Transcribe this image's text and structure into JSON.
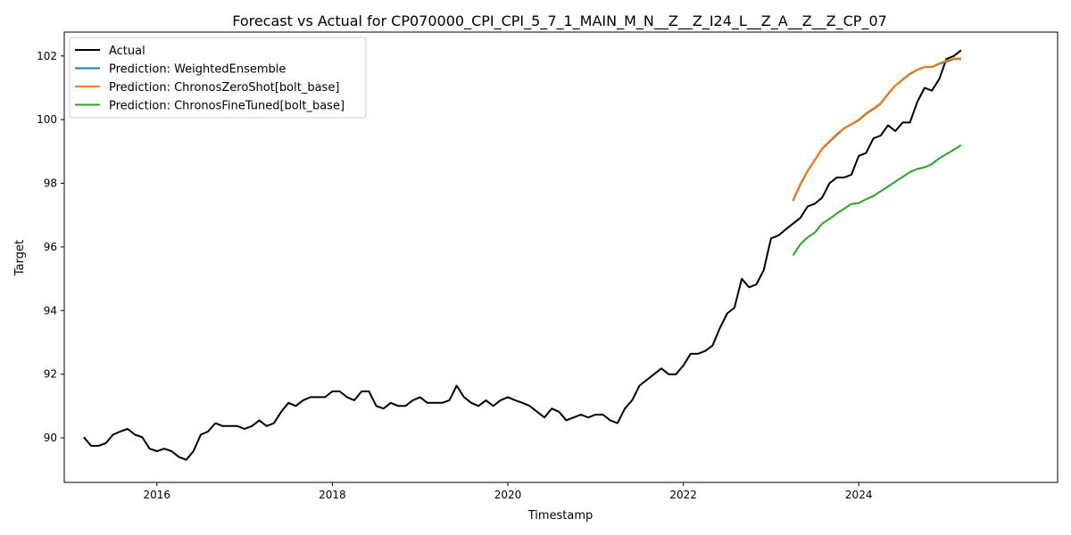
{
  "chart_data": {
    "type": "line",
    "title": "Forecast vs Actual for CP070000_CPI_CPI_5_7_1_MAIN_M_N__Z__Z_I24_L__Z_A__Z__Z_CP_07",
    "xlabel": "Timestamp",
    "ylabel": "Target",
    "xlim": [
      "2014-12-11",
      "2026-04-07"
    ],
    "ylim": [
      88.6,
      102.75
    ],
    "x_ticks": [
      "2016",
      "2018",
      "2020",
      "2022",
      "2024"
    ],
    "y_ticks": [
      90,
      92,
      94,
      96,
      98,
      100,
      102
    ],
    "grid": false,
    "legend_position": "upper left",
    "series": [
      {
        "name": "Actual",
        "color": "#000000",
        "points": [
          [
            "2015-03",
            90.02
          ],
          [
            "2015-04",
            89.75
          ],
          [
            "2015-05",
            89.75
          ],
          [
            "2015-06",
            89.83
          ],
          [
            "2015-07",
            90.1
          ],
          [
            "2015-08",
            90.2
          ],
          [
            "2015-09",
            90.28
          ],
          [
            "2015-10",
            90.1
          ],
          [
            "2015-11",
            90.02
          ],
          [
            "2015-12",
            89.66
          ],
          [
            "2016-01",
            89.58
          ],
          [
            "2016-02",
            89.66
          ],
          [
            "2016-03",
            89.58
          ],
          [
            "2016-04",
            89.4
          ],
          [
            "2016-05",
            89.31
          ],
          [
            "2016-06",
            89.58
          ],
          [
            "2016-07",
            90.1
          ],
          [
            "2016-08",
            90.2
          ],
          [
            "2016-09",
            90.46
          ],
          [
            "2016-10",
            90.37
          ],
          [
            "2016-11",
            90.37
          ],
          [
            "2016-12",
            90.37
          ],
          [
            "2017-01",
            90.28
          ],
          [
            "2017-02",
            90.37
          ],
          [
            "2017-03",
            90.55
          ],
          [
            "2017-04",
            90.37
          ],
          [
            "2017-05",
            90.46
          ],
          [
            "2017-06",
            90.82
          ],
          [
            "2017-07",
            91.1
          ],
          [
            "2017-08",
            91.0
          ],
          [
            "2017-09",
            91.18
          ],
          [
            "2017-10",
            91.28
          ],
          [
            "2017-11",
            91.28
          ],
          [
            "2017-12",
            91.28
          ],
          [
            "2018-01",
            91.46
          ],
          [
            "2018-02",
            91.46
          ],
          [
            "2018-03",
            91.28
          ],
          [
            "2018-04",
            91.18
          ],
          [
            "2018-05",
            91.46
          ],
          [
            "2018-06",
            91.46
          ],
          [
            "2018-07",
            91.0
          ],
          [
            "2018-08",
            90.92
          ],
          [
            "2018-09",
            91.1
          ],
          [
            "2018-10",
            91.0
          ],
          [
            "2018-11",
            91.0
          ],
          [
            "2018-12",
            91.18
          ],
          [
            "2019-01",
            91.28
          ],
          [
            "2019-02",
            91.1
          ],
          [
            "2019-03",
            91.1
          ],
          [
            "2019-04",
            91.1
          ],
          [
            "2019-05",
            91.18
          ],
          [
            "2019-06",
            91.64
          ],
          [
            "2019-07",
            91.28
          ],
          [
            "2019-08",
            91.1
          ],
          [
            "2019-09",
            91.0
          ],
          [
            "2019-10",
            91.18
          ],
          [
            "2019-11",
            91.0
          ],
          [
            "2019-12",
            91.18
          ],
          [
            "2020-01",
            91.28
          ],
          [
            "2020-02",
            91.18
          ],
          [
            "2020-03",
            91.1
          ],
          [
            "2020-04",
            91.0
          ],
          [
            "2020-05",
            90.82
          ],
          [
            "2020-06",
            90.64
          ],
          [
            "2020-07",
            90.92
          ],
          [
            "2020-08",
            90.82
          ],
          [
            "2020-09",
            90.55
          ],
          [
            "2020-10",
            90.64
          ],
          [
            "2020-11",
            90.73
          ],
          [
            "2020-12",
            90.64
          ],
          [
            "2021-01",
            90.73
          ],
          [
            "2021-02",
            90.73
          ],
          [
            "2021-03",
            90.55
          ],
          [
            "2021-04",
            90.46
          ],
          [
            "2021-05",
            90.92
          ],
          [
            "2021-06",
            91.18
          ],
          [
            "2021-07",
            91.64
          ],
          [
            "2021-08",
            91.82
          ],
          [
            "2021-09",
            92.0
          ],
          [
            "2021-10",
            92.18
          ],
          [
            "2021-11",
            92.0
          ],
          [
            "2021-12",
            92.0
          ],
          [
            "2022-01",
            92.27
          ],
          [
            "2022-02",
            92.64
          ],
          [
            "2022-03",
            92.64
          ],
          [
            "2022-04",
            92.73
          ],
          [
            "2022-05",
            92.9
          ],
          [
            "2022-06",
            93.45
          ],
          [
            "2022-07",
            93.91
          ],
          [
            "2022-08",
            94.09
          ],
          [
            "2022-09",
            95.0
          ],
          [
            "2022-10",
            94.73
          ],
          [
            "2022-11",
            94.82
          ],
          [
            "2022-12",
            95.27
          ],
          [
            "2023-01",
            96.27
          ],
          [
            "2023-02",
            96.36
          ],
          [
            "2023-03",
            96.55
          ],
          [
            "2023-04",
            96.73
          ],
          [
            "2023-05",
            96.91
          ],
          [
            "2023-06",
            97.27
          ],
          [
            "2023-07",
            97.36
          ],
          [
            "2023-08",
            97.55
          ],
          [
            "2023-09",
            98.0
          ],
          [
            "2023-10",
            98.18
          ],
          [
            "2023-11",
            98.18
          ],
          [
            "2023-12",
            98.27
          ],
          [
            "2024-01",
            98.86
          ],
          [
            "2024-02",
            98.95
          ],
          [
            "2024-03",
            99.41
          ],
          [
            "2024-04",
            99.5
          ],
          [
            "2024-05",
            99.82
          ],
          [
            "2024-06",
            99.64
          ],
          [
            "2024-07",
            99.91
          ],
          [
            "2024-08",
            99.91
          ],
          [
            "2024-09",
            100.55
          ],
          [
            "2024-10",
            101.0
          ],
          [
            "2024-11",
            100.91
          ],
          [
            "2024-12",
            101.27
          ],
          [
            "2025-01",
            101.91
          ],
          [
            "2025-02",
            102.0
          ],
          [
            "2025-03",
            102.18
          ]
        ]
      },
      {
        "name": "Prediction: WeightedEnsemble",
        "color": "#1f77b4",
        "points": [
          [
            "2023-04",
            97.45
          ],
          [
            "2023-05",
            97.95
          ],
          [
            "2023-06",
            98.38
          ],
          [
            "2023-07",
            98.73
          ],
          [
            "2023-08",
            99.08
          ],
          [
            "2023-09",
            99.3
          ],
          [
            "2023-10",
            99.52
          ],
          [
            "2023-11",
            99.72
          ],
          [
            "2023-12",
            99.85
          ],
          [
            "2024-01",
            99.98
          ],
          [
            "2024-02",
            100.18
          ],
          [
            "2024-03",
            100.33
          ],
          [
            "2024-04",
            100.5
          ],
          [
            "2024-05",
            100.8
          ],
          [
            "2024-06",
            101.07
          ],
          [
            "2024-07",
            101.25
          ],
          [
            "2024-08",
            101.43
          ],
          [
            "2024-09",
            101.56
          ],
          [
            "2024-10",
            101.65
          ],
          [
            "2024-11",
            101.65
          ],
          [
            "2024-12",
            101.75
          ],
          [
            "2025-01",
            101.82
          ],
          [
            "2025-02",
            101.9
          ],
          [
            "2025-03",
            101.9
          ]
        ]
      },
      {
        "name": "Prediction: ChronosZeroShot[bolt_base]",
        "color": "#ff7f0e",
        "points": [
          [
            "2023-04",
            97.47
          ],
          [
            "2023-05",
            97.98
          ],
          [
            "2023-06",
            98.4
          ],
          [
            "2023-07",
            98.75
          ],
          [
            "2023-08",
            99.1
          ],
          [
            "2023-09",
            99.32
          ],
          [
            "2023-10",
            99.55
          ],
          [
            "2023-11",
            99.73
          ],
          [
            "2023-12",
            99.86
          ],
          [
            "2024-01",
            100.0
          ],
          [
            "2024-02",
            100.2
          ],
          [
            "2024-03",
            100.35
          ],
          [
            "2024-04",
            100.52
          ],
          [
            "2024-05",
            100.82
          ],
          [
            "2024-06",
            101.08
          ],
          [
            "2024-07",
            101.27
          ],
          [
            "2024-08",
            101.45
          ],
          [
            "2024-09",
            101.57
          ],
          [
            "2024-10",
            101.66
          ],
          [
            "2024-11",
            101.66
          ],
          [
            "2024-12",
            101.77
          ],
          [
            "2025-01",
            101.85
          ],
          [
            "2025-02",
            101.92
          ],
          [
            "2025-03",
            101.92
          ]
        ]
      },
      {
        "name": "Prediction: ChronosFineTuned[bolt_base]",
        "color": "#2ca02c",
        "points": [
          [
            "2023-04",
            95.73
          ],
          [
            "2023-05",
            96.08
          ],
          [
            "2023-06",
            96.3
          ],
          [
            "2023-07",
            96.45
          ],
          [
            "2023-08",
            96.73
          ],
          [
            "2023-09",
            96.88
          ],
          [
            "2023-10",
            97.05
          ],
          [
            "2023-11",
            97.2
          ],
          [
            "2023-12",
            97.35
          ],
          [
            "2024-01",
            97.38
          ],
          [
            "2024-02",
            97.5
          ],
          [
            "2024-03",
            97.6
          ],
          [
            "2024-04",
            97.75
          ],
          [
            "2024-05",
            97.9
          ],
          [
            "2024-06",
            98.05
          ],
          [
            "2024-07",
            98.2
          ],
          [
            "2024-08",
            98.35
          ],
          [
            "2024-09",
            98.45
          ],
          [
            "2024-10",
            98.5
          ],
          [
            "2024-11",
            98.6
          ],
          [
            "2024-12",
            98.78
          ],
          [
            "2025-01",
            98.92
          ],
          [
            "2025-02",
            99.05
          ],
          [
            "2025-03",
            99.2
          ]
        ]
      }
    ]
  }
}
